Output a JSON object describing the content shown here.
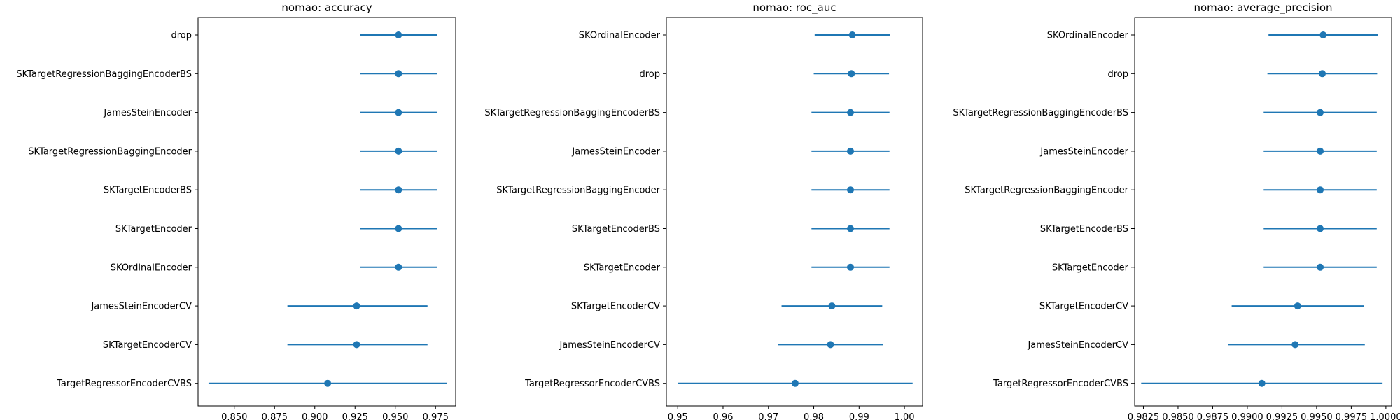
{
  "colors": {
    "series": "#1f77b4",
    "axis": "#000000",
    "background": "#ffffff"
  },
  "chart_data": [
    {
      "type": "scatter",
      "title": "nomao: accuracy",
      "xlabel": "",
      "ylabel": "",
      "xlim": [
        0.8275,
        0.9875
      ],
      "xticks": [
        0.85,
        0.875,
        0.9,
        0.925,
        0.95,
        0.975
      ],
      "xtick_labels": [
        "0.850",
        "0.875",
        "0.900",
        "0.925",
        "0.950",
        "0.975"
      ],
      "grid": false,
      "points": [
        {
          "category": "drop",
          "mean": 0.952,
          "err_low": 0.928,
          "err_high": 0.976
        },
        {
          "category": "SKTargetRegressionBaggingEncoderBS",
          "mean": 0.952,
          "err_low": 0.928,
          "err_high": 0.976
        },
        {
          "category": "JamesSteinEncoder",
          "mean": 0.952,
          "err_low": 0.928,
          "err_high": 0.976
        },
        {
          "category": "SKTargetRegressionBaggingEncoder",
          "mean": 0.952,
          "err_low": 0.928,
          "err_high": 0.976
        },
        {
          "category": "SKTargetEncoderBS",
          "mean": 0.952,
          "err_low": 0.928,
          "err_high": 0.976
        },
        {
          "category": "SKTargetEncoder",
          "mean": 0.952,
          "err_low": 0.928,
          "err_high": 0.976
        },
        {
          "category": "SKOrdinalEncoder",
          "mean": 0.952,
          "err_low": 0.928,
          "err_high": 0.976
        },
        {
          "category": "JamesSteinEncoderCV",
          "mean": 0.926,
          "err_low": 0.883,
          "err_high": 0.97
        },
        {
          "category": "SKTargetEncoderCV",
          "mean": 0.926,
          "err_low": 0.883,
          "err_high": 0.97
        },
        {
          "category": "TargetRegressorEncoderCVBS",
          "mean": 0.908,
          "err_low": 0.834,
          "err_high": 0.982
        }
      ]
    },
    {
      "type": "scatter",
      "title": "nomao: roc_auc",
      "xlabel": "",
      "ylabel": "",
      "xlim": [
        0.9475,
        1.004
      ],
      "xticks": [
        0.95,
        0.96,
        0.97,
        0.98,
        0.99,
        1.0
      ],
      "xtick_labels": [
        "0.95",
        "0.96",
        "0.97",
        "0.98",
        "0.99",
        "1.00"
      ],
      "grid": false,
      "points": [
        {
          "category": "SKOrdinalEncoder",
          "mean": 0.9885,
          "err_low": 0.9802,
          "err_high": 0.9968
        },
        {
          "category": "drop",
          "mean": 0.9883,
          "err_low": 0.98,
          "err_high": 0.9966
        },
        {
          "category": "SKTargetRegressionBaggingEncoderBS",
          "mean": 0.9881,
          "err_low": 0.9795,
          "err_high": 0.9967
        },
        {
          "category": "JamesSteinEncoder",
          "mean": 0.9881,
          "err_low": 0.9795,
          "err_high": 0.9967
        },
        {
          "category": "SKTargetRegressionBaggingEncoder",
          "mean": 0.9881,
          "err_low": 0.9795,
          "err_high": 0.9967
        },
        {
          "category": "SKTargetEncoderBS",
          "mean": 0.9881,
          "err_low": 0.9795,
          "err_high": 0.9967
        },
        {
          "category": "SKTargetEncoder",
          "mean": 0.9881,
          "err_low": 0.9795,
          "err_high": 0.9967
        },
        {
          "category": "SKTargetEncoderCV",
          "mean": 0.984,
          "err_low": 0.9729,
          "err_high": 0.9951
        },
        {
          "category": "JamesSteinEncoderCV",
          "mean": 0.9837,
          "err_low": 0.9722,
          "err_high": 0.9952
        },
        {
          "category": "TargetRegressorEncoderCVBS",
          "mean": 0.9759,
          "err_low": 0.9501,
          "err_high": 1.0018
        }
      ]
    },
    {
      "type": "scatter",
      "title": "nomao: average_precision",
      "xlabel": "",
      "ylabel": "",
      "xlim": [
        0.98187,
        1.00041
      ],
      "xticks": [
        0.9825,
        0.985,
        0.9875,
        0.99,
        0.9925,
        0.995,
        0.9975,
        1.0
      ],
      "xtick_labels": [
        "0.9825",
        "0.9850",
        "0.9875",
        "0.9900",
        "0.9925",
        "0.9950",
        "0.9975",
        "1.0000"
      ],
      "grid": false,
      "points": [
        {
          "category": "SKOrdinalEncoder",
          "mean": 0.99547,
          "err_low": 0.99153,
          "err_high": 0.99941
        },
        {
          "category": "drop",
          "mean": 0.99541,
          "err_low": 0.99145,
          "err_high": 0.99937
        },
        {
          "category": "SKTargetRegressionBaggingEncoderBS",
          "mean": 0.99526,
          "err_low": 0.99118,
          "err_high": 0.99934
        },
        {
          "category": "JamesSteinEncoder",
          "mean": 0.99526,
          "err_low": 0.99118,
          "err_high": 0.99934
        },
        {
          "category": "SKTargetRegressionBaggingEncoder",
          "mean": 0.99526,
          "err_low": 0.99118,
          "err_high": 0.99934
        },
        {
          "category": "SKTargetEncoderBS",
          "mean": 0.99526,
          "err_low": 0.99118,
          "err_high": 0.99934
        },
        {
          "category": "SKTargetEncoder",
          "mean": 0.99526,
          "err_low": 0.99118,
          "err_high": 0.99934
        },
        {
          "category": "SKTargetEncoderCV",
          "mean": 0.99363,
          "err_low": 0.98887,
          "err_high": 0.99839
        },
        {
          "category": "JamesSteinEncoderCV",
          "mean": 0.99345,
          "err_low": 0.98863,
          "err_high": 0.99848
        },
        {
          "category": "TargetRegressorEncoderCVBS",
          "mean": 0.99105,
          "err_low": 0.98234,
          "err_high": 0.99976
        }
      ]
    }
  ]
}
